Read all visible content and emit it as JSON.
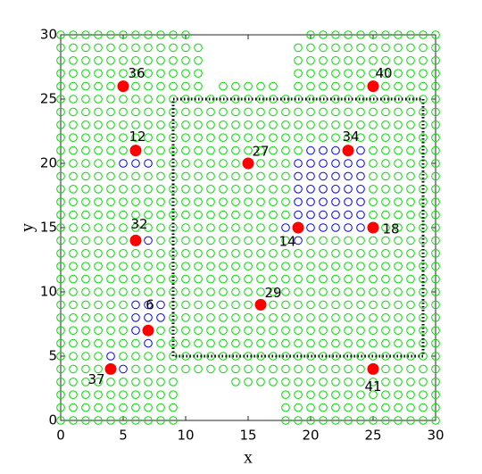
{
  "chart_data": {
    "type": "scatter",
    "xlabel": "x",
    "ylabel": "y",
    "xlim": [
      0,
      30
    ],
    "ylim": [
      0,
      30
    ],
    "xticks": [
      0,
      5,
      10,
      15,
      20,
      25,
      30
    ],
    "yticks": [
      0,
      5,
      10,
      15,
      20,
      25,
      30
    ],
    "green_color": "#00dd00",
    "blue_color": "#0000ff",
    "red_color": "#ff0000",
    "region_color": "#000000",
    "region": {
      "x": [
        9,
        29
      ],
      "y": [
        5,
        25
      ]
    },
    "points": [
      {
        "x": 5,
        "y": 26,
        "label": "36"
      },
      {
        "x": 25,
        "y": 26,
        "label": "40"
      },
      {
        "x": 6,
        "y": 21,
        "label": "12"
      },
      {
        "x": 23,
        "y": 21,
        "label": "34"
      },
      {
        "x": 15,
        "y": 20,
        "label": "27"
      },
      {
        "x": 19,
        "y": 15,
        "label": "14"
      },
      {
        "x": 25,
        "y": 15,
        "label": "18"
      },
      {
        "x": 6,
        "y": 14,
        "label": "32"
      },
      {
        "x": 16,
        "y": 9,
        "label": "29"
      },
      {
        "x": 7,
        "y": 7,
        "label": "6"
      },
      {
        "x": 4,
        "y": 4,
        "label": "37"
      },
      {
        "x": 25,
        "y": 4,
        "label": "41"
      }
    ],
    "blue_rows": [
      {
        "y": 21,
        "x": [
          20,
          21,
          22,
          24
        ]
      },
      {
        "y": 20,
        "x": [
          5,
          6,
          7,
          19,
          20,
          21,
          22,
          23,
          24
        ]
      },
      {
        "y": 19,
        "x": [
          19,
          20,
          21,
          22,
          23,
          24
        ]
      },
      {
        "y": 18,
        "x": [
          19,
          20,
          21,
          22,
          23,
          24
        ]
      },
      {
        "y": 17,
        "x": [
          19,
          20,
          21,
          22,
          23,
          24
        ]
      },
      {
        "y": 16,
        "x": [
          19,
          20,
          21,
          22,
          23,
          24
        ]
      },
      {
        "y": 15,
        "x": [
          18,
          20,
          21,
          22,
          23,
          24
        ]
      },
      {
        "y": 14,
        "x": [
          7,
          19
        ]
      },
      {
        "y": 9,
        "x": [
          6,
          7,
          8
        ]
      },
      {
        "y": 8,
        "x": [
          6,
          7,
          8
        ]
      },
      {
        "y": 7,
        "x": [
          6
        ]
      },
      {
        "y": 6,
        "x": [
          7
        ]
      },
      {
        "y": 5,
        "x": [
          4
        ]
      },
      {
        "y": 4,
        "x": [
          5
        ]
      }
    ],
    "green_rows": [
      {
        "y": 30,
        "x": [
          0,
          1,
          2,
          3,
          4,
          5,
          6,
          7,
          8,
          9,
          10,
          20,
          21,
          22,
          23,
          24,
          25,
          26,
          27,
          28,
          29,
          30
        ]
      },
      {
        "y": 29,
        "x": [
          0,
          1,
          2,
          3,
          4,
          5,
          6,
          7,
          8,
          9,
          10,
          11,
          19,
          20,
          21,
          22,
          23,
          24,
          25,
          26,
          27,
          28,
          29,
          30
        ]
      },
      {
        "y": 28,
        "x": [
          0,
          1,
          2,
          3,
          4,
          5,
          6,
          7,
          8,
          9,
          10,
          11,
          19,
          20,
          21,
          22,
          23,
          24,
          25,
          26,
          27,
          28,
          29,
          30
        ]
      },
      {
        "y": 27,
        "x": [
          0,
          1,
          2,
          3,
          4,
          5,
          6,
          7,
          8,
          9,
          10,
          11,
          19,
          20,
          21,
          22,
          23,
          24,
          25,
          26,
          27,
          28,
          29,
          30
        ]
      },
      {
        "y": 26,
        "x": [
          0,
          1,
          2,
          3,
          4,
          6,
          7,
          8,
          9,
          10,
          11,
          13,
          14,
          15,
          16,
          17,
          19,
          20,
          21,
          22,
          23,
          24,
          26,
          27,
          28,
          29,
          30
        ]
      },
      {
        "y": 25,
        "x": [
          0,
          1,
          2,
          3,
          4,
          5,
          6,
          7,
          8,
          9,
          10,
          11,
          12,
          13,
          14,
          15,
          16,
          17,
          18,
          19,
          20,
          21,
          22,
          23,
          24,
          25,
          26,
          27,
          28,
          29,
          30
        ]
      },
      {
        "y": 24,
        "x": [
          0,
          1,
          2,
          3,
          4,
          5,
          6,
          7,
          8,
          9,
          10,
          11,
          12,
          13,
          14,
          15,
          16,
          17,
          18,
          19,
          20,
          21,
          22,
          23,
          24,
          25,
          26,
          27,
          28,
          29,
          30
        ]
      },
      {
        "y": 23,
        "x": [
          0,
          1,
          2,
          3,
          4,
          5,
          6,
          7,
          8,
          9,
          10,
          11,
          12,
          13,
          14,
          15,
          16,
          17,
          18,
          19,
          20,
          21,
          22,
          23,
          24,
          25,
          26,
          27,
          28,
          29,
          30
        ]
      },
      {
        "y": 22,
        "x": [
          0,
          1,
          2,
          3,
          4,
          5,
          6,
          7,
          8,
          9,
          10,
          11,
          12,
          13,
          14,
          15,
          16,
          17,
          18,
          19,
          20,
          21,
          22,
          23,
          24,
          25,
          26,
          27,
          28,
          29,
          30
        ]
      },
      {
        "y": 21,
        "x": [
          0,
          1,
          2,
          3,
          4,
          5,
          7,
          8,
          9,
          10,
          11,
          12,
          13,
          14,
          15,
          16,
          17,
          18,
          19,
          25,
          26,
          27,
          28,
          29,
          30
        ]
      },
      {
        "y": 20,
        "x": [
          0,
          1,
          2,
          3,
          4,
          8,
          9,
          10,
          11,
          12,
          13,
          14,
          16,
          17,
          18,
          25,
          26,
          27,
          28,
          29,
          30
        ]
      },
      {
        "y": 19,
        "x": [
          0,
          1,
          2,
          3,
          4,
          5,
          6,
          7,
          8,
          9,
          10,
          11,
          12,
          13,
          14,
          15,
          16,
          17,
          18,
          25,
          26,
          27,
          28,
          29,
          30
        ]
      },
      {
        "y": 18,
        "x": [
          0,
          1,
          2,
          3,
          4,
          5,
          6,
          7,
          8,
          9,
          10,
          11,
          12,
          13,
          14,
          15,
          16,
          17,
          18,
          25,
          26,
          27,
          28,
          29,
          30
        ]
      },
      {
        "y": 17,
        "x": [
          0,
          1,
          2,
          3,
          4,
          5,
          6,
          7,
          8,
          9,
          10,
          11,
          12,
          13,
          14,
          15,
          16,
          17,
          18,
          25,
          26,
          27,
          28,
          29,
          30
        ]
      },
      {
        "y": 16,
        "x": [
          0,
          1,
          2,
          3,
          4,
          5,
          6,
          7,
          8,
          9,
          10,
          11,
          12,
          13,
          14,
          15,
          16,
          17,
          18,
          25,
          26,
          27,
          28,
          29,
          30
        ]
      },
      {
        "y": 15,
        "x": [
          0,
          1,
          2,
          3,
          4,
          5,
          6,
          7,
          8,
          9,
          10,
          11,
          12,
          13,
          14,
          15,
          16,
          17,
          26,
          27,
          28,
          29,
          30
        ]
      },
      {
        "y": 14,
        "x": [
          0,
          1,
          2,
          3,
          4,
          5,
          8,
          9,
          10,
          11,
          12,
          13,
          14,
          15,
          16,
          17,
          18,
          20,
          21,
          22,
          23,
          24,
          25,
          26,
          27,
          28,
          29,
          30
        ]
      },
      {
        "y": 13,
        "x": [
          0,
          1,
          2,
          3,
          4,
          5,
          6,
          7,
          8,
          9,
          10,
          11,
          12,
          13,
          14,
          15,
          16,
          17,
          18,
          19,
          20,
          21,
          22,
          23,
          24,
          25,
          26,
          27,
          28,
          29,
          30
        ]
      },
      {
        "y": 12,
        "x": [
          0,
          1,
          2,
          3,
          4,
          5,
          6,
          7,
          8,
          9,
          10,
          11,
          12,
          13,
          14,
          15,
          16,
          17,
          18,
          19,
          20,
          21,
          22,
          23,
          24,
          25,
          26,
          27,
          28,
          29,
          30
        ]
      },
      {
        "y": 11,
        "x": [
          0,
          1,
          2,
          3,
          4,
          5,
          6,
          7,
          8,
          9,
          10,
          11,
          12,
          13,
          14,
          15,
          16,
          17,
          18,
          19,
          20,
          21,
          22,
          23,
          24,
          25,
          26,
          27,
          28,
          29,
          30
        ]
      },
      {
        "y": 10,
        "x": [
          0,
          1,
          2,
          3,
          4,
          5,
          6,
          7,
          8,
          9,
          10,
          11,
          12,
          13,
          14,
          15,
          16,
          17,
          18,
          19,
          20,
          21,
          22,
          23,
          24,
          25,
          26,
          27,
          28,
          29,
          30
        ]
      },
      {
        "y": 9,
        "x": [
          0,
          1,
          2,
          3,
          4,
          5,
          9,
          10,
          11,
          12,
          13,
          14,
          15,
          17,
          18,
          19,
          20,
          21,
          22,
          23,
          24,
          25,
          26,
          27,
          28,
          29,
          30
        ]
      },
      {
        "y": 8,
        "x": [
          0,
          1,
          2,
          3,
          4,
          5,
          9,
          10,
          11,
          12,
          13,
          14,
          15,
          16,
          17,
          18,
          19,
          20,
          21,
          22,
          23,
          24,
          25,
          26,
          27,
          28,
          29,
          30
        ]
      },
      {
        "y": 7,
        "x": [
          0,
          1,
          2,
          3,
          4,
          5,
          8,
          9,
          10,
          11,
          12,
          13,
          14,
          15,
          16,
          17,
          18,
          19,
          20,
          21,
          22,
          23,
          24,
          25,
          26,
          27,
          28,
          29,
          30
        ]
      },
      {
        "y": 6,
        "x": [
          0,
          1,
          2,
          3,
          4,
          5,
          6,
          8,
          9,
          10,
          11,
          12,
          13,
          14,
          15,
          16,
          17,
          18,
          19,
          20,
          21,
          22,
          23,
          24,
          25,
          26,
          27,
          28,
          29,
          30
        ]
      },
      {
        "y": 5,
        "x": [
          0,
          1,
          2,
          3,
          5,
          6,
          7,
          8,
          9,
          10,
          11,
          12,
          13,
          14,
          15,
          16,
          17,
          18,
          19,
          20,
          21,
          22,
          23,
          24,
          25,
          26,
          27,
          28,
          29,
          30
        ]
      },
      {
        "y": 4,
        "x": [
          0,
          1,
          2,
          3,
          6,
          7,
          8,
          9,
          10,
          11,
          12,
          13,
          14,
          15,
          16,
          17,
          18,
          19,
          20,
          21,
          22,
          23,
          24,
          26,
          27,
          28,
          29,
          30
        ]
      },
      {
        "y": 3,
        "x": [
          0,
          1,
          2,
          3,
          4,
          5,
          6,
          7,
          8,
          9,
          14,
          15,
          16,
          17,
          18,
          19,
          20,
          21,
          22,
          23,
          24,
          25,
          26,
          27,
          28,
          29,
          30
        ]
      },
      {
        "y": 2,
        "x": [
          0,
          1,
          2,
          3,
          4,
          5,
          6,
          7,
          8,
          9,
          18,
          19,
          20,
          21,
          22,
          23,
          24,
          25,
          26,
          27,
          28,
          29,
          30
        ]
      },
      {
        "y": 1,
        "x": [
          0,
          1,
          2,
          3,
          4,
          5,
          6,
          7,
          8,
          9,
          18,
          19,
          20,
          21,
          22,
          23,
          24,
          25,
          26,
          27,
          28,
          29,
          30
        ]
      },
      {
        "y": 0,
        "x": [
          0,
          1,
          2,
          3,
          4,
          5,
          6,
          7,
          8,
          9,
          18,
          19,
          20,
          21,
          22,
          23,
          24,
          25,
          26,
          27,
          28,
          29,
          30
        ]
      }
    ]
  }
}
